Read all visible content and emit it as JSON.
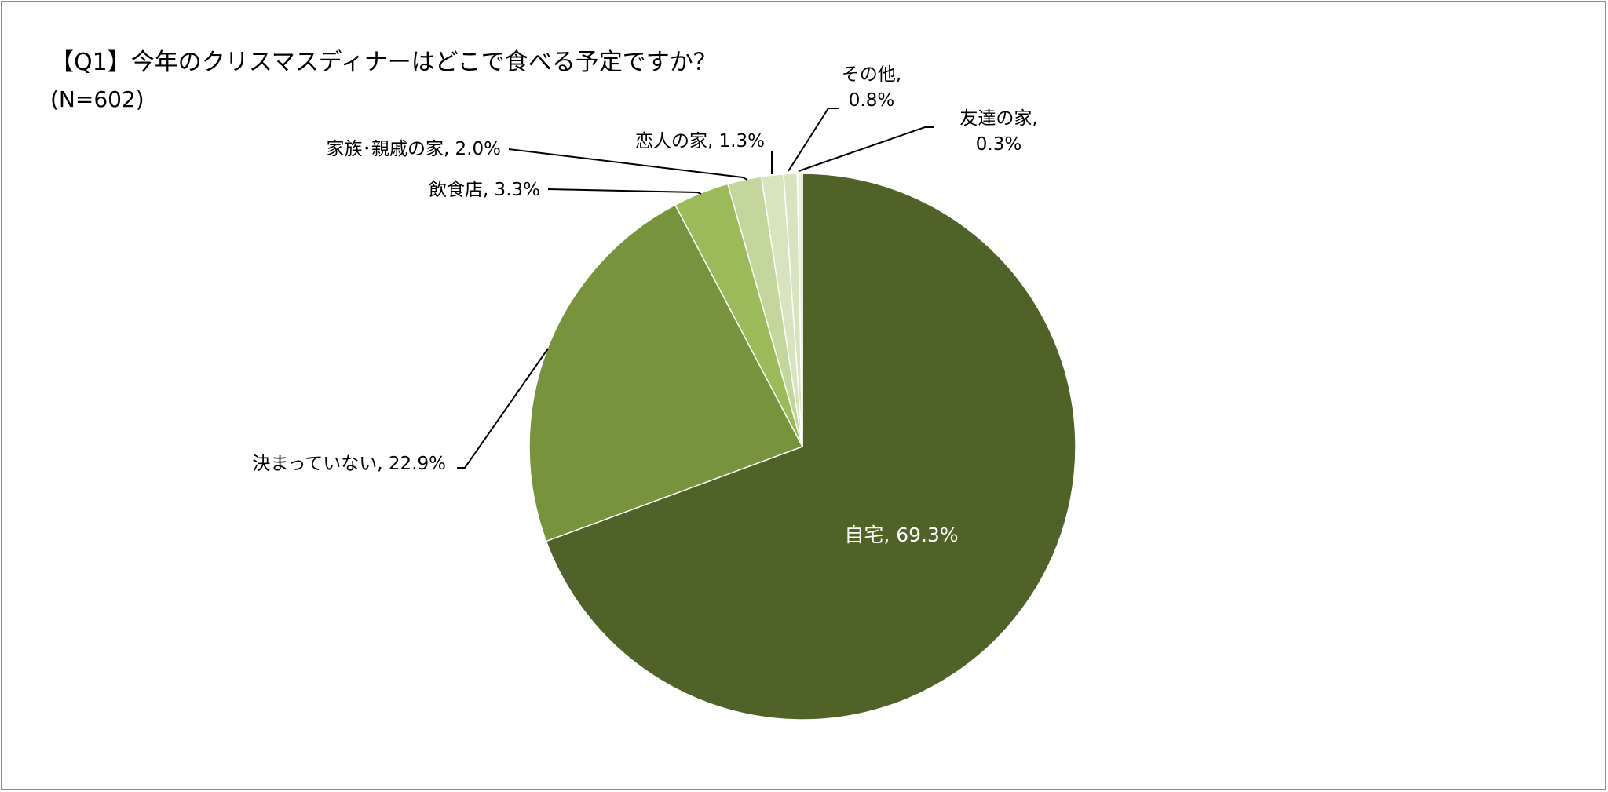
{
  "chart_data": {
    "type": "pie",
    "title": "【Q1】今年のクリスマスディナーはどこで食べる予定ですか？",
    "subtitle": "(N=602)",
    "start_angle_deg": 0,
    "direction": "clockwise",
    "legend": "none",
    "slices": [
      {
        "label": "自宅",
        "value": 69.3,
        "display": "自宅, 69.3%",
        "color": "#4f6228"
      },
      {
        "label": "決まっていない",
        "value": 22.9,
        "display": "決まっていない, 22.9%",
        "color": "#77933c"
      },
      {
        "label": "飲食店",
        "value": 3.3,
        "display": "飲食店, 3.3%",
        "color": "#9bbb59"
      },
      {
        "label": "家族・親戚の家",
        "value": 2.0,
        "display": "家族･親戚の家, 2.0%",
        "color": "#c3d69b"
      },
      {
        "label": "恋人の家",
        "value": 1.3,
        "display": "恋人の家, 1.3%",
        "color": "#d7e4bd"
      },
      {
        "label": "その他",
        "value": 0.8,
        "display_lines": [
          "その他,",
          "0.8%"
        ],
        "color": "#d7e4bd"
      },
      {
        "label": "友達の家",
        "value": 0.3,
        "display_lines": [
          "友達の家,",
          "0.3%"
        ],
        "color": "#ebf1de"
      }
    ]
  }
}
